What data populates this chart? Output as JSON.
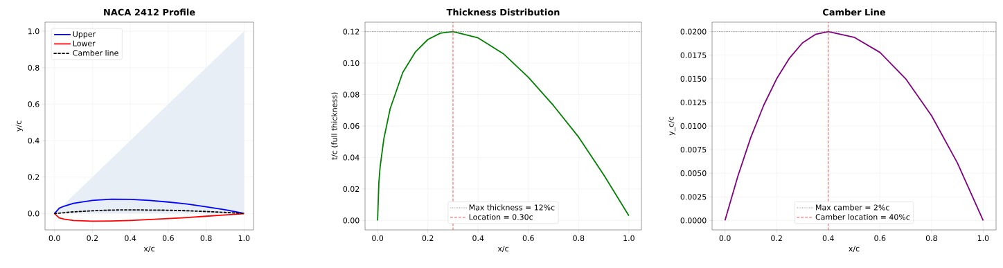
{
  "chart_data": [
    {
      "type": "line",
      "title": "NACA 2412 Profile",
      "xlabel": "x/c",
      "ylabel": "y/c",
      "xlim": [
        -0.05,
        1.05
      ],
      "ylim": [
        -0.09,
        1.05
      ],
      "xticks": [
        {
          "value": 0,
          "label": "0.0"
        },
        {
          "value": 0.2,
          "label": "0.2"
        },
        {
          "value": 0.4,
          "label": "0.4"
        },
        {
          "value": 0.6,
          "label": "0.6"
        },
        {
          "value": 0.8,
          "label": "0.8"
        },
        {
          "value": 1,
          "label": "1.0"
        }
      ],
      "yticks": [
        {
          "value": 0,
          "label": "0.0"
        },
        {
          "value": 0.2,
          "label": "0.2"
        },
        {
          "value": 0.4,
          "label": "0.4"
        },
        {
          "value": 0.6,
          "label": "0.6"
        },
        {
          "value": 0.8,
          "label": "0.8"
        },
        {
          "value": 1,
          "label": "1.0"
        }
      ],
      "grid": true,
      "legend": "top left",
      "marker": "none",
      "series": [
        {
          "type": "area",
          "color": "#e8eef6",
          "x": [
            0,
            1
          ],
          "values": [
            0,
            1
          ]
        },
        {
          "name": "Upper",
          "color": "#0000ff",
          "x": [
            0,
            0.025,
            0.05,
            0.1,
            0.2,
            0.3,
            0.4,
            0.5,
            0.6,
            0.7,
            0.8,
            0.9,
            1
          ],
          "values": [
            0,
            0.029,
            0.04,
            0.056,
            0.072,
            0.079,
            0.078,
            0.072,
            0.063,
            0.052,
            0.037,
            0.021,
            0.001
          ]
        },
        {
          "name": "Lower",
          "color": "#ff0000",
          "x": [
            0,
            0.025,
            0.05,
            0.1,
            0.2,
            0.3,
            0.4,
            0.5,
            0.6,
            0.7,
            0.8,
            0.9,
            1
          ],
          "values": [
            0,
            -0.024,
            -0.031,
            -0.038,
            -0.042,
            -0.041,
            -0.038,
            -0.033,
            -0.028,
            -0.022,
            -0.015,
            -0.008,
            -0.001
          ]
        },
        {
          "name": "Camber line",
          "color": "#000000",
          "line_style": "dashed",
          "x": [
            0,
            0.1,
            0.2,
            0.3,
            0.4,
            0.5,
            0.6,
            0.7,
            0.8,
            0.9,
            1
          ],
          "values": [
            0,
            0.009,
            0.015,
            0.019,
            0.02,
            0.019,
            0.018,
            0.015,
            0.011,
            0.006,
            0
          ]
        }
      ]
    },
    {
      "type": "line",
      "title": "Thickness Distribution",
      "xlabel": "x/c",
      "ylabel": "t/c (full thickness)",
      "xlim": [
        -0.05,
        1.05
      ],
      "ylim": [
        -0.006,
        0.126
      ],
      "xticks": [
        {
          "value": 0,
          "label": "0.0"
        },
        {
          "value": 0.2,
          "label": "0.2"
        },
        {
          "value": 0.4,
          "label": "0.4"
        },
        {
          "value": 0.6,
          "label": "0.6"
        },
        {
          "value": 0.8,
          "label": "0.8"
        },
        {
          "value": 1,
          "label": "1.0"
        }
      ],
      "yticks": [
        {
          "value": 0,
          "label": "0.00"
        },
        {
          "value": 0.02,
          "label": "0.02"
        },
        {
          "value": 0.04,
          "label": "0.04"
        },
        {
          "value": 0.06,
          "label": "0.06"
        },
        {
          "value": 0.08,
          "label": "0.08"
        },
        {
          "value": 0.1,
          "label": "0.10"
        },
        {
          "value": 0.12,
          "label": "0.12"
        }
      ],
      "grid": true,
      "legend": "bottom",
      "marker": "none",
      "series": [
        {
          "color": "#008000",
          "x": [
            0,
            0.005,
            0.01,
            0.025,
            0.05,
            0.1,
            0.15,
            0.2,
            0.25,
            0.3,
            0.4,
            0.5,
            0.6,
            0.7,
            0.8,
            0.9,
            1
          ],
          "values": [
            0,
            0.024,
            0.034,
            0.052,
            0.071,
            0.094,
            0.107,
            0.115,
            0.119,
            0.12,
            0.116,
            0.106,
            0.091,
            0.073,
            0.053,
            0.029,
            0.003
          ]
        }
      ],
      "ref_lines": [
        {
          "axis": "y",
          "value": 0.12,
          "label": "Max thickness = 12%c",
          "color": "#808080",
          "line_style": "dotted"
        },
        {
          "axis": "x",
          "value": 0.3,
          "label": "Location = 0.30c",
          "color": "#ff4c4c",
          "line_style": "dashed"
        }
      ]
    },
    {
      "type": "line",
      "title": "Camber Line",
      "xlabel": "x/c",
      "ylabel": "y_c/c",
      "xlim": [
        -0.05,
        1.05
      ],
      "ylim": [
        -0.001,
        0.021
      ],
      "xticks": [
        {
          "value": 0,
          "label": "0.0"
        },
        {
          "value": 0.2,
          "label": "0.2"
        },
        {
          "value": 0.4,
          "label": "0.4"
        },
        {
          "value": 0.6,
          "label": "0.6"
        },
        {
          "value": 0.8,
          "label": "0.8"
        },
        {
          "value": 1,
          "label": "1.0"
        }
      ],
      "yticks": [
        {
          "value": 0,
          "label": "0.0000"
        },
        {
          "value": 0.0025,
          "label": "0.0025"
        },
        {
          "value": 0.005,
          "label": "0.0050"
        },
        {
          "value": 0.0075,
          "label": "0.0075"
        },
        {
          "value": 0.01,
          "label": "0.0100"
        },
        {
          "value": 0.0125,
          "label": "0.0125"
        },
        {
          "value": 0.015,
          "label": "0.0150"
        },
        {
          "value": 0.0175,
          "label": "0.0175"
        },
        {
          "value": 0.02,
          "label": "0.0200"
        }
      ],
      "grid": true,
      "legend": "bottom",
      "marker": "none",
      "series": [
        {
          "color": "#800080",
          "x": [
            0,
            0.05,
            0.1,
            0.15,
            0.2,
            0.25,
            0.3,
            0.35,
            0.4,
            0.5,
            0.6,
            0.7,
            0.8,
            0.9,
            1
          ],
          "values": [
            0,
            0.0047,
            0.0088,
            0.0122,
            0.015,
            0.0172,
            0.0188,
            0.0197,
            0.02,
            0.0194,
            0.0178,
            0.015,
            0.0111,
            0.0061,
            0
          ]
        }
      ],
      "ref_lines": [
        {
          "axis": "y",
          "value": 0.02,
          "label": "Max camber = 2%c",
          "color": "#808080",
          "line_style": "dotted"
        },
        {
          "axis": "x",
          "value": 0.4,
          "label": "Camber location = 40%c",
          "color": "#ff4c4c",
          "line_style": "dashed"
        }
      ]
    }
  ]
}
